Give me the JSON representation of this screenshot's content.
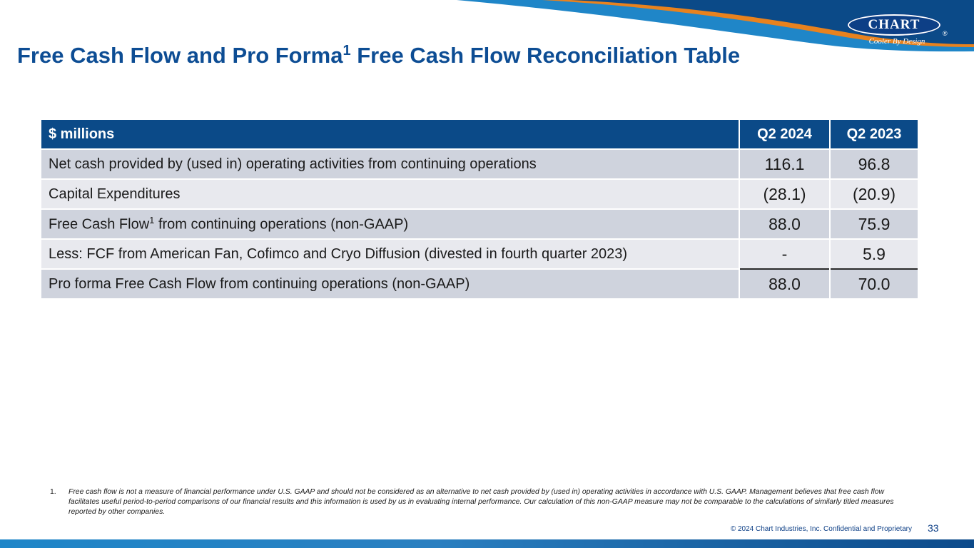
{
  "header": {
    "title_main": "Free Cash Flow and Pro Forma",
    "title_sup": "1",
    "title_rest": " Free Cash Flow Reconciliation Table"
  },
  "logo": {
    "brand": "CHART",
    "tagline": "Cooler By Design",
    "registered": "®"
  },
  "colors": {
    "title": "#0d4d94",
    "header_bg": "#0b4a88",
    "row_dark": "#cfd3dd",
    "row_light": "#e8e9ee",
    "accent_orange": "#e8821e"
  },
  "table": {
    "columns": [
      "$ millions",
      "Q2 2024",
      "Q2 2023"
    ],
    "rows": [
      {
        "label": "Net cash provided by (used in) operating activities from continuing operations",
        "sup": "",
        "label_rest": "",
        "q2_2024": "116.1",
        "q2_2023": "96.8"
      },
      {
        "label": "Capital Expenditures",
        "sup": "",
        "label_rest": "",
        "q2_2024": "(28.1)",
        "q2_2023": "(20.9)"
      },
      {
        "label": "Free Cash Flow",
        "sup": "1",
        "label_rest": " from continuing operations (non-GAAP)",
        "q2_2024": "88.0",
        "q2_2023": "75.9"
      },
      {
        "label": "Less: FCF from American Fan, Cofimco and Cryo Diffusion (divested in fourth quarter 2023)",
        "sup": "",
        "label_rest": "",
        "q2_2024": "-",
        "q2_2023": "5.9"
      },
      {
        "label": "Pro forma Free Cash Flow from continuing operations (non-GAAP)",
        "sup": "",
        "label_rest": "",
        "q2_2024": "88.0",
        "q2_2023": "70.0"
      }
    ]
  },
  "footnote": {
    "number": "1.",
    "text": "Free cash flow is not a measure of financial performance under U.S. GAAP and should not be considered as an alternative to net cash provided by (used in) operating activities in accordance with U.S. GAAP.  Management believes that free cash flow facilitates useful period-to-period comparisons of our financial results and this information is used by us in evaluating internal performance. Our calculation of this non-GAAP measure may not be comparable to the calculations of similarly titled measures reported by other companies."
  },
  "footer": {
    "copyright": "© 2024 Chart Industries, Inc. Confidential and Proprietary",
    "page_number": "33"
  }
}
